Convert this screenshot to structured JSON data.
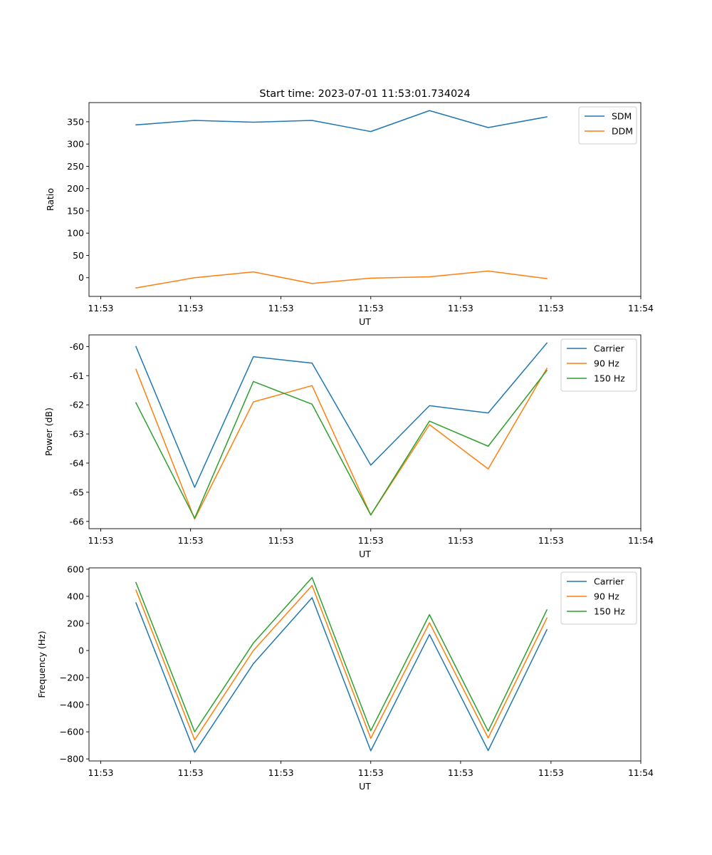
{
  "figure": {
    "title": "Start time: 2023-07-01 11:53:01.734024"
  },
  "chart_data": [
    {
      "type": "line",
      "title": "Start time: 2023-07-01 11:53:01.734024",
      "xlabel": "UT",
      "ylabel": "Ratio",
      "x": [
        1,
        2,
        3,
        4,
        5,
        6,
        7,
        8
      ],
      "xlim": [
        0.2,
        9.6
      ],
      "x_ticks": [
        0.4,
        1.93,
        3.47,
        5,
        6.53,
        8.07,
        9.6
      ],
      "x_tick_labels": [
        "11:53",
        "11:53",
        "11:53",
        "11:53",
        "11:53",
        "11:53",
        "11:54"
      ],
      "ylim": [
        -42,
        393
      ],
      "y_ticks": [
        0,
        50,
        100,
        150,
        200,
        250,
        300,
        350
      ],
      "y_tick_labels": [
        "0",
        "50",
        "100",
        "150",
        "200",
        "250",
        "300",
        "350"
      ],
      "grid": false,
      "legend_position": "top-right",
      "series": [
        {
          "name": "SDM",
          "color": "#1f77b4",
          "values": [
            343,
            353,
            349,
            353,
            328,
            375,
            337,
            361
          ]
        },
        {
          "name": "DDM",
          "color": "#ff7f0e",
          "values": [
            -23,
            0,
            13,
            -13,
            -1,
            2,
            15,
            -2
          ]
        }
      ]
    },
    {
      "type": "line",
      "xlabel": "UT",
      "ylabel": "Power (dB)",
      "x": [
        1,
        2,
        3,
        4,
        5,
        6,
        7,
        8
      ],
      "xlim": [
        0.2,
        9.6
      ],
      "x_ticks": [
        0.4,
        1.93,
        3.47,
        5,
        6.53,
        8.07,
        9.6
      ],
      "x_tick_labels": [
        "11:53",
        "11:53",
        "11:53",
        "11:53",
        "11:53",
        "11:53",
        "11:54"
      ],
      "ylim": [
        -66.25,
        -59.6
      ],
      "y_ticks": [
        -66,
        -65,
        -64,
        -63,
        -62,
        -61,
        -60
      ],
      "y_tick_labels": [
        "-66",
        "-65",
        "-64",
        "-63",
        "-62",
        "-61",
        "-60"
      ],
      "grid": false,
      "legend_position": "top-right",
      "series": [
        {
          "name": "Carrier",
          "color": "#1f77b4",
          "values": [
            -60.0,
            -64.83,
            -60.35,
            -60.57,
            -64.07,
            -62.03,
            -62.28,
            -59.88
          ]
        },
        {
          "name": "90 Hz",
          "color": "#ff7f0e",
          "values": [
            -60.78,
            -65.92,
            -61.9,
            -61.34,
            -65.78,
            -62.68,
            -64.2,
            -60.75
          ]
        },
        {
          "name": "150 Hz",
          "color": "#2ca02c",
          "values": [
            -61.93,
            -65.89,
            -61.2,
            -61.98,
            -65.78,
            -62.56,
            -63.42,
            -60.82
          ]
        }
      ]
    },
    {
      "type": "line",
      "xlabel": "UT",
      "ylabel": "Frequency (Hz)",
      "x": [
        1,
        2,
        3,
        4,
        5,
        6,
        7,
        8
      ],
      "xlim": [
        0.2,
        9.6
      ],
      "x_ticks": [
        0.4,
        1.93,
        3.47,
        5,
        6.53,
        8.07,
        9.6
      ],
      "x_tick_labels": [
        "11:53",
        "11:53",
        "11:53",
        "11:53",
        "11:53",
        "11:53",
        "11:54"
      ],
      "ylim": [
        -815,
        610
      ],
      "y_ticks": [
        -800,
        -600,
        -400,
        -200,
        0,
        200,
        400,
        600
      ],
      "y_tick_labels": [
        "−800",
        "−600",
        "−400",
        "−200",
        "0",
        "200",
        "400",
        "600"
      ],
      "grid": false,
      "legend_position": "top-right",
      "series": [
        {
          "name": "Carrier",
          "color": "#1f77b4",
          "values": [
            352,
            -751,
            -97,
            390,
            -740,
            118,
            -738,
            154
          ]
        },
        {
          "name": "90 Hz",
          "color": "#ff7f0e",
          "values": [
            446,
            -660,
            0,
            480,
            -648,
            205,
            -645,
            240
          ]
        },
        {
          "name": "150 Hz",
          "color": "#2ca02c",
          "values": [
            502,
            -600,
            55,
            539,
            -592,
            265,
            -595,
            300
          ]
        }
      ]
    }
  ]
}
